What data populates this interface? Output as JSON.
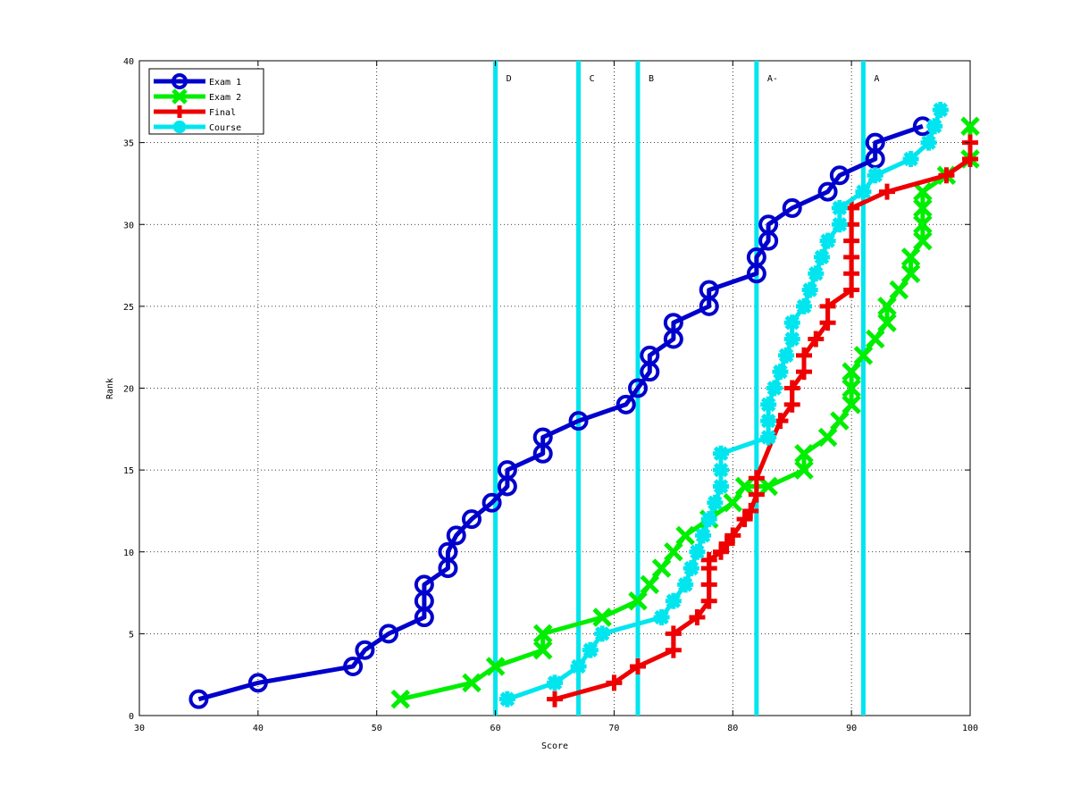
{
  "chart_data": {
    "type": "line",
    "title": "",
    "xlabel": "Score",
    "ylabel": "Rank",
    "xlim": [
      30,
      100
    ],
    "ylim": [
      0,
      40
    ],
    "xticks": [
      30,
      40,
      50,
      60,
      70,
      80,
      90,
      100
    ],
    "yticks": [
      0,
      5,
      10,
      15,
      20,
      25,
      30,
      35,
      40
    ],
    "grid": true,
    "legend": {
      "placement": "top-left",
      "entries": [
        "Exam 1",
        "Exam 2",
        "Final",
        "Course"
      ]
    },
    "grade_cutoffs": [
      {
        "label": "D",
        "x": 60
      },
      {
        "label": "C",
        "x": 67
      },
      {
        "label": "B",
        "x": 72
      },
      {
        "label": "A-",
        "x": 82
      },
      {
        "label": "A",
        "x": 91
      }
    ],
    "cutoff_color": "#00e5ee",
    "series": [
      {
        "name": "Exam 1",
        "color": "#0000cc",
        "marker": "circle",
        "x": [
          35,
          40,
          48,
          49,
          51,
          54,
          54,
          54,
          56,
          56,
          56.7,
          58,
          59.7,
          61,
          61,
          64,
          64,
          67,
          71,
          72,
          73,
          73,
          75,
          75,
          78,
          78,
          82,
          82,
          83,
          83,
          85,
          88,
          89,
          92,
          92,
          96
        ],
        "y": [
          1,
          2,
          3,
          4,
          5,
          6,
          7,
          8,
          9,
          10,
          11,
          12,
          13,
          14,
          15,
          16,
          17,
          18,
          19,
          20,
          21,
          22,
          23,
          24,
          25,
          26,
          27,
          28,
          29,
          30,
          31,
          32,
          33,
          34,
          35,
          36
        ]
      },
      {
        "name": "Exam 2",
        "color": "#00ee00",
        "marker": "x",
        "x": [
          52,
          58,
          60,
          64,
          64,
          69,
          72,
          73,
          74,
          75,
          76,
          78,
          80,
          81,
          83,
          86,
          86,
          88,
          89,
          90,
          90,
          90,
          91,
          92,
          93,
          93,
          94,
          95,
          95,
          96,
          96,
          96,
          96,
          98,
          100,
          100
        ],
        "y": [
          1,
          2,
          3,
          4,
          5,
          6,
          7,
          8,
          9,
          10,
          11,
          12,
          13,
          14,
          14,
          15,
          16,
          17,
          18,
          19,
          20,
          21,
          22,
          23,
          24,
          25,
          26,
          27,
          28,
          29,
          30,
          31,
          32,
          33,
          34,
          36
        ]
      },
      {
        "name": "Final",
        "color": "#ee0000",
        "marker": "plus",
        "x": [
          65,
          70,
          72,
          75,
          75,
          77,
          78,
          78,
          78,
          78,
          79,
          79.5,
          80,
          81,
          81.5,
          82,
          82,
          84,
          85,
          85,
          86,
          86,
          87,
          88,
          88,
          90,
          90,
          90,
          90,
          90,
          90,
          93,
          98,
          100,
          100
        ],
        "y": [
          1,
          2,
          3,
          4,
          5,
          6,
          7,
          8,
          9,
          9.5,
          10,
          10.5,
          11,
          12,
          12.5,
          13.5,
          14.5,
          18,
          19,
          20,
          21,
          22,
          23,
          24,
          25,
          26,
          27,
          28,
          29,
          30,
          31,
          32,
          33,
          34,
          35
        ]
      },
      {
        "name": "Course",
        "color": "#00e5ee",
        "marker": "asterisk",
        "x": [
          61,
          65,
          67,
          68,
          69,
          74,
          75,
          76,
          76.5,
          77,
          77.5,
          78,
          78.5,
          79,
          79,
          79,
          83,
          83,
          83,
          83.5,
          84,
          84.5,
          85,
          85,
          86,
          86.5,
          87,
          87.5,
          88,
          89,
          89,
          91,
          92,
          95,
          96.5,
          97,
          97.5
        ],
        "y": [
          1,
          2,
          3,
          4,
          5,
          6,
          7,
          8,
          9,
          10,
          11,
          12,
          13,
          14,
          15,
          16,
          17,
          18,
          19,
          20,
          21,
          22,
          23,
          24,
          25,
          26,
          27,
          28,
          29,
          30,
          31,
          32,
          33,
          34,
          35,
          36,
          37
        ]
      }
    ]
  }
}
